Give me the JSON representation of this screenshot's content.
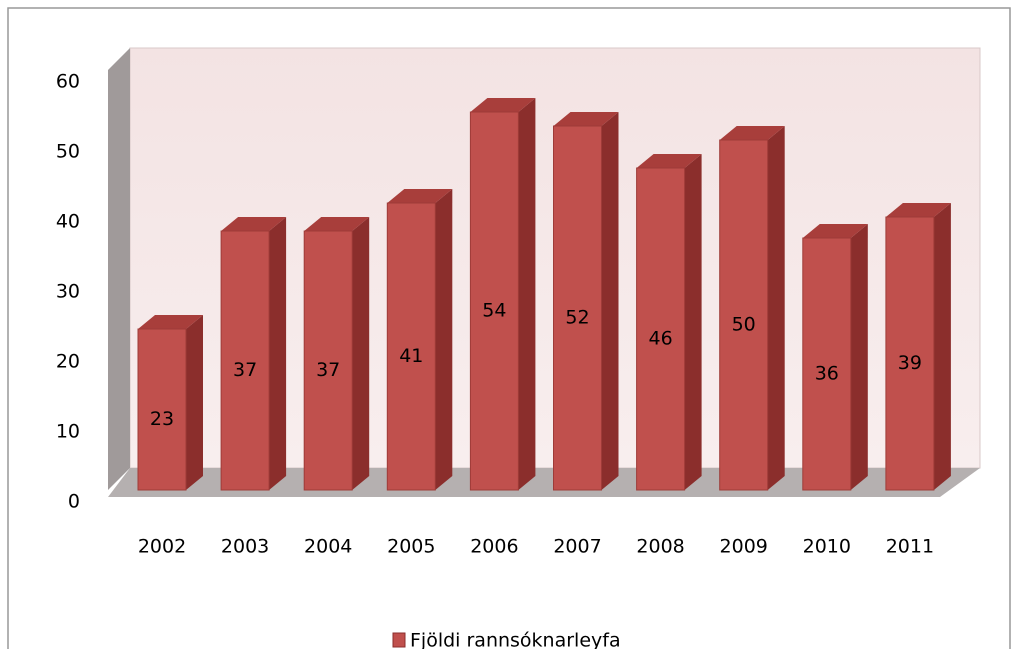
{
  "chart_data": {
    "type": "bar3d",
    "categories": [
      "2002",
      "2003",
      "2004",
      "2005",
      "2006",
      "2007",
      "2008",
      "2009",
      "2010",
      "2011"
    ],
    "series": [
      {
        "name": "Fjöldi rannsóknarleyfa",
        "color": "#c0504d",
        "values": [
          23,
          37,
          37,
          41,
          54,
          52,
          46,
          50,
          36,
          39
        ]
      }
    ],
    "ylim": [
      0,
      60
    ],
    "yticks": [
      0,
      10,
      20,
      30,
      40,
      50,
      60
    ],
    "grid": false,
    "legend": "bottom"
  }
}
